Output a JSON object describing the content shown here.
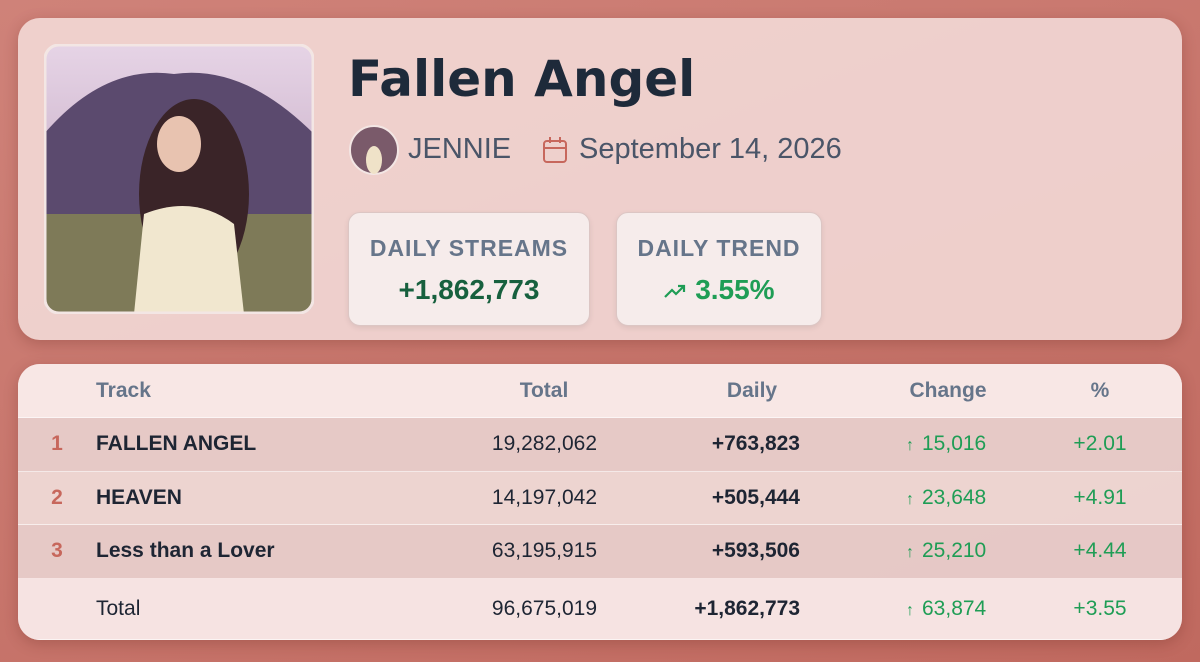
{
  "header": {
    "title": "Fallen Angel",
    "artist": "JENNIE",
    "date": "September 14, 2026"
  },
  "stats": [
    {
      "label": "DAILY STREAMS",
      "value": "+1,862,773"
    },
    {
      "label": "DAILY TREND",
      "value": "3.55%"
    }
  ],
  "table": {
    "columns": [
      "Track",
      "Total",
      "Daily",
      "Change",
      "%"
    ],
    "rows": [
      {
        "rank": 1,
        "track": "FALLEN ANGEL",
        "total": "19,282,062",
        "daily": "+763,823",
        "change": "15,016",
        "percent": "+2.01"
      },
      {
        "rank": 2,
        "track": "HEAVEN",
        "total": "14,197,042",
        "daily": "+505,444",
        "change": "23,648",
        "percent": "+4.91"
      },
      {
        "rank": 3,
        "track": "Less than a Lover",
        "total": "63,195,915",
        "daily": "+593,506",
        "change": "25,210",
        "percent": "+4.44"
      }
    ],
    "footer": {
      "label": "Total",
      "total": "96,675,019",
      "daily": "+1,862,773",
      "change": "63,874",
      "percent": "+3.55"
    }
  }
}
